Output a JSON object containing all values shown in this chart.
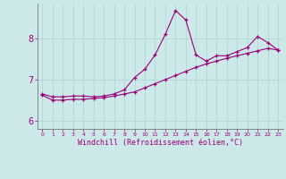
{
  "xlabel": "Windchill (Refroidissement éolien,°C)",
  "background_color": "#cce8e8",
  "line_color": "#990077",
  "grid_color": "#aad4d4",
  "xlim": [
    -0.5,
    23.5
  ],
  "ylim": [
    5.8,
    8.85
  ],
  "yticks": [
    6,
    7,
    8
  ],
  "xticks": [
    0,
    1,
    2,
    3,
    4,
    5,
    6,
    7,
    8,
    9,
    10,
    11,
    12,
    13,
    14,
    15,
    16,
    17,
    18,
    19,
    20,
    21,
    22,
    23
  ],
  "series1_x": [
    0,
    1,
    2,
    3,
    4,
    5,
    6,
    7,
    8,
    9,
    10,
    11,
    12,
    13,
    14,
    15,
    16,
    17,
    18,
    19,
    20,
    21,
    22,
    23
  ],
  "series1_y": [
    6.65,
    6.58,
    6.58,
    6.6,
    6.6,
    6.58,
    6.6,
    6.65,
    6.75,
    7.05,
    7.25,
    7.6,
    8.1,
    8.68,
    8.45,
    7.6,
    7.45,
    7.58,
    7.58,
    7.68,
    7.78,
    8.05,
    7.9,
    7.72
  ],
  "series2_x": [
    0,
    1,
    2,
    3,
    4,
    5,
    6,
    7,
    8,
    9,
    10,
    11,
    12,
    13,
    14,
    15,
    16,
    17,
    18,
    19,
    20,
    21,
    22,
    23
  ],
  "series2_y": [
    6.62,
    6.5,
    6.5,
    6.52,
    6.52,
    6.54,
    6.56,
    6.6,
    6.65,
    6.7,
    6.8,
    6.9,
    7.0,
    7.1,
    7.2,
    7.3,
    7.38,
    7.45,
    7.52,
    7.58,
    7.64,
    7.7,
    7.76,
    7.72
  ]
}
